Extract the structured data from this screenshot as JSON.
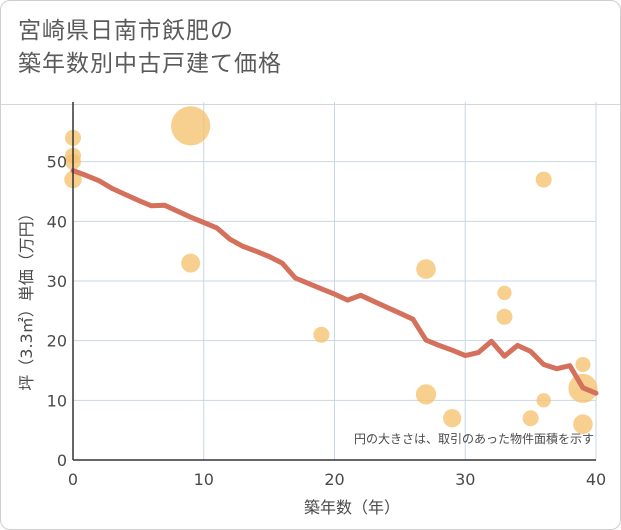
{
  "chart_data": {
    "type": "scatter",
    "title_lines": [
      "宮崎県日南市飫肥の",
      "築年数別中古戸建て価格"
    ],
    "xlabel": "築年数（年）",
    "ylabel": "坪（3.3㎡）単価（万円）",
    "xlim": [
      0,
      40
    ],
    "ylim": [
      0,
      60
    ],
    "xticks": [
      0,
      10,
      20,
      30,
      40
    ],
    "yticks": [
      0,
      10,
      20,
      30,
      40,
      50
    ],
    "grid": true,
    "note": "円の大きさは、取引のあった物件面積を示す",
    "colors": {
      "bubble": "#f5c170",
      "line": "#d4705c",
      "grid": "#c9d6e3",
      "axis": "#333333"
    },
    "bubbles": [
      {
        "x": 0,
        "y": 54,
        "size": 1
      },
      {
        "x": 0,
        "y": 51,
        "size": 1
      },
      {
        "x": 0,
        "y": 50,
        "size": 1
      },
      {
        "x": 0,
        "y": 47,
        "size": 1.2
      },
      {
        "x": 9,
        "y": 56,
        "size": 6
      },
      {
        "x": 9,
        "y": 33,
        "size": 1.4
      },
      {
        "x": 19,
        "y": 21,
        "size": 1
      },
      {
        "x": 27,
        "y": 32,
        "size": 1.5
      },
      {
        "x": 27,
        "y": 11,
        "size": 1.6
      },
      {
        "x": 29,
        "y": 7,
        "size": 1.3
      },
      {
        "x": 33,
        "y": 28,
        "size": 0.8
      },
      {
        "x": 33,
        "y": 24,
        "size": 1
      },
      {
        "x": 35,
        "y": 7,
        "size": 1
      },
      {
        "x": 36,
        "y": 47,
        "size": 1
      },
      {
        "x": 36,
        "y": 10,
        "size": 0.8
      },
      {
        "x": 39,
        "y": 16,
        "size": 0.9
      },
      {
        "x": 39,
        "y": 12,
        "size": 3.3
      },
      {
        "x": 39,
        "y": 6,
        "size": 1.5
      }
    ],
    "trend": {
      "x": [
        0,
        1,
        2,
        3,
        4,
        5,
        6,
        7,
        8,
        9,
        10,
        11,
        12,
        13,
        14,
        15,
        16,
        17,
        18,
        19,
        20,
        21,
        22,
        23,
        24,
        25,
        26,
        27,
        28,
        29,
        30,
        31,
        32,
        33,
        34,
        35,
        36,
        37,
        38,
        39,
        40
      ],
      "y": [
        48.5,
        47.7,
        46.8,
        45.5,
        44.5,
        43.5,
        42.6,
        42.7,
        41.7,
        40.7,
        39.8,
        38.9,
        37.0,
        35.8,
        35.0,
        34.1,
        33.0,
        30.5,
        29.6,
        28.7,
        27.8,
        26.8,
        27.6,
        26.6,
        25.6,
        24.6,
        23.6,
        20.1,
        19.2,
        18.4,
        17.5,
        18.0,
        19.9,
        17.4,
        19.2,
        18.2,
        16.0,
        15.3,
        15.8,
        12.1,
        11.2
      ]
    }
  }
}
